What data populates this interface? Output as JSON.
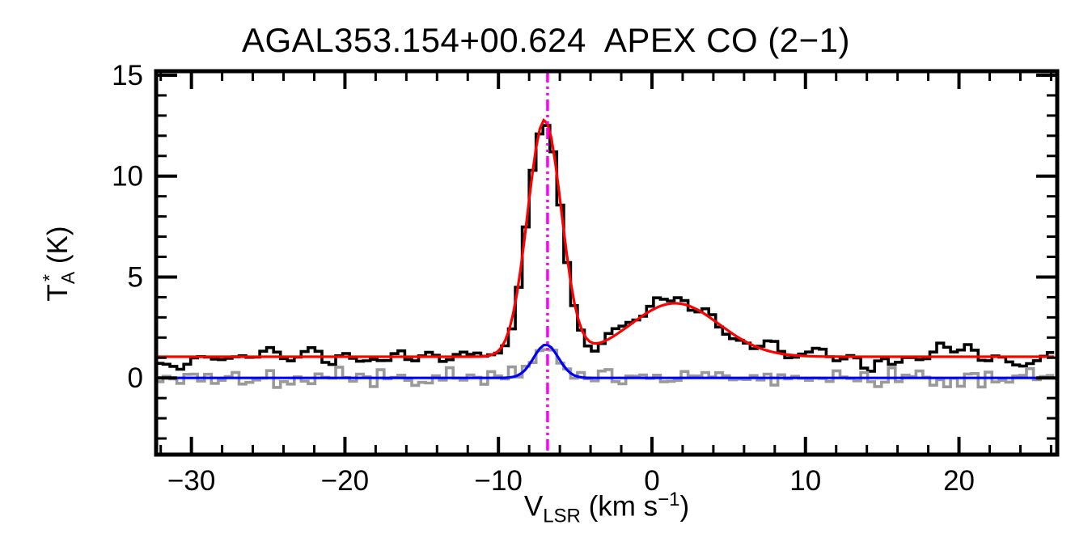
{
  "figure": {
    "background": "#ffffff"
  },
  "chart_data": {
    "type": "line",
    "title": "AGAL353.154+00.624  APEX CO (2−1)",
    "xlabel_parts": {
      "pre": "V",
      "sub": "LSR",
      "mid": " (km s",
      "sup": "−1",
      "post": ")"
    },
    "ylabel_parts": {
      "pre": "T",
      "sup": "*",
      "sub": "A",
      "post": " (K)"
    },
    "xlim": [
      -32.3,
      26.4
    ],
    "ylim": [
      -3.8,
      15.2
    ],
    "xticks": {
      "values": [
        -30,
        -20,
        -10,
        0,
        10,
        20
      ],
      "labels": [
        "−30",
        "−20",
        "−10",
        "0",
        "10",
        "20"
      ],
      "minor_step": 2
    },
    "yticks": {
      "values": [
        0,
        5,
        10,
        15
      ],
      "labels": [
        "0",
        "5",
        "10",
        "15"
      ],
      "minor_step": 1
    },
    "grid": false,
    "legend": "none",
    "frame_color": "#000000",
    "channel_width": 0.45,
    "noise_seed": 11,
    "vline": {
      "x": -6.8,
      "color": "#ff00ff",
      "style": "dash-dot",
      "width": 3.5
    },
    "series": [
      {
        "name": "observed-co21-spectrum",
        "role": "observed histogram spectrum",
        "style": "histogram",
        "color": "#000000",
        "line_width": 3.6,
        "baseline": 1.05,
        "noise_sigma": 0.4,
        "noise_smooth": true,
        "components": [
          {
            "center": -7.0,
            "amplitude": 11.7,
            "fwhm": 2.6
          },
          {
            "center": 1.5,
            "amplitude": 2.65,
            "fwhm": 6.8
          }
        ]
      },
      {
        "name": "secondary-spectrum",
        "role": "residual / secondary histogram spectrum",
        "style": "histogram",
        "color": "#9a9a9a",
        "line_width": 3.6,
        "baseline": 0.0,
        "noise_sigma": 0.22,
        "noise_smooth": false,
        "components": [
          {
            "center": -6.9,
            "amplitude": 1.65,
            "fwhm": 1.9
          }
        ]
      },
      {
        "name": "total-gaussian-fit",
        "role": "two-component gaussian fit",
        "style": "smooth",
        "color": "#ff0000",
        "line_width": 3.2,
        "baseline": 1.05,
        "components": [
          {
            "center": -7.0,
            "amplitude": 11.7,
            "fwhm": 2.6
          },
          {
            "center": 1.5,
            "amplitude": 2.65,
            "fwhm": 6.8
          }
        ]
      },
      {
        "name": "secondary-gaussian-fit",
        "role": "single gaussian fit to secondary spectrum",
        "style": "smooth",
        "color": "#0000ff",
        "line_width": 3.2,
        "baseline": 0.0,
        "components": [
          {
            "center": -6.9,
            "amplitude": 1.65,
            "fwhm": 1.9
          }
        ]
      }
    ]
  }
}
